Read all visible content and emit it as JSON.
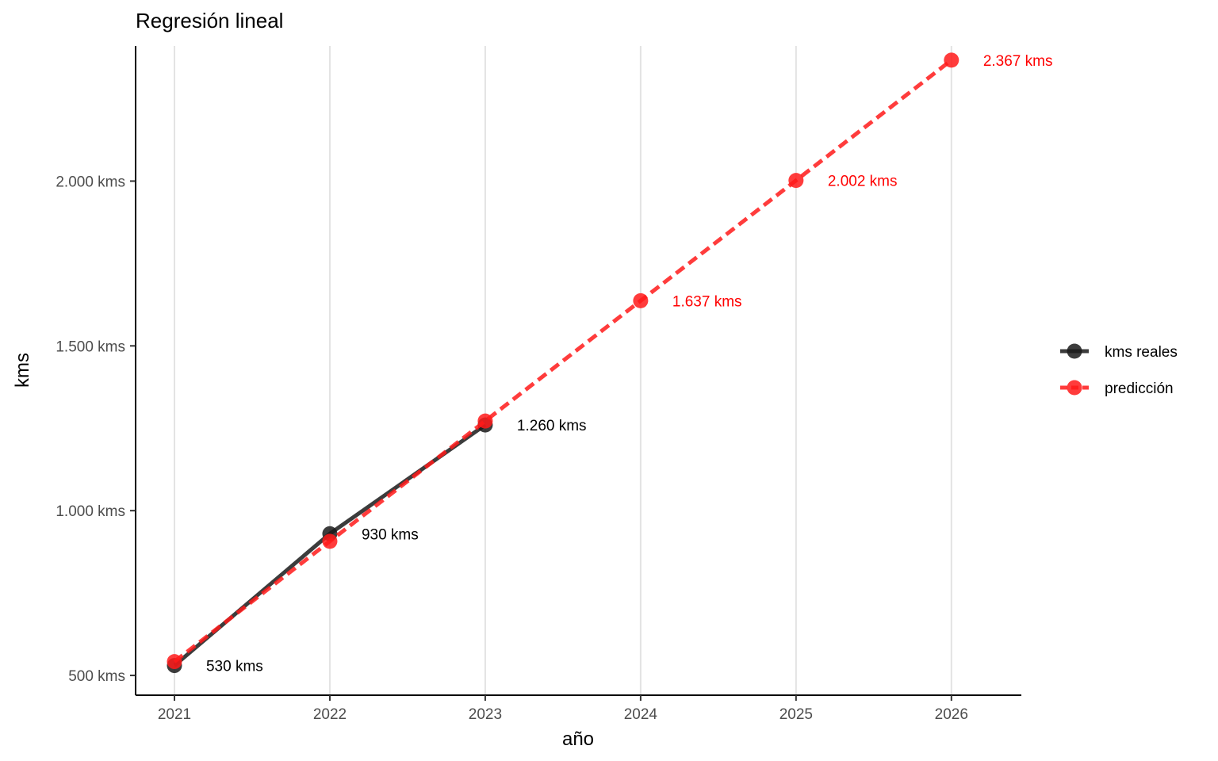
{
  "chart_data": {
    "type": "line",
    "title": "Regresión lineal",
    "xlabel": "año",
    "ylabel": "kms",
    "x": [
      2021,
      2022,
      2023,
      2024,
      2025,
      2026
    ],
    "x_tick_labels": [
      "2021",
      "2022",
      "2023",
      "2024",
      "2025",
      "2026"
    ],
    "y_ticks": [
      500,
      1000,
      1500,
      2000
    ],
    "y_tick_labels": [
      "500 kms",
      "1.000 kms",
      "1.500 kms",
      "2.000 kms"
    ],
    "xlim": [
      2020.75,
      2026.45
    ],
    "ylim": [
      440,
      2410
    ],
    "grid": "vertical major lines",
    "legend_position": "right",
    "series": [
      {
        "name": "kms reales",
        "color": "#1a1a1a",
        "line_style": "solid",
        "x": [
          2021,
          2022,
          2023
        ],
        "values": [
          530,
          930,
          1260
        ],
        "labels": [
          "530 kms",
          "930 kms",
          "1.260 kms"
        ],
        "label_color": "#000000"
      },
      {
        "name": "predicción",
        "color": "#ff1a1a",
        "line_style": "dashed",
        "x": [
          2021,
          2022,
          2023,
          2024,
          2025,
          2026
        ],
        "values": [
          542,
          907,
          1272,
          1637,
          2002,
          2367
        ],
        "labels": [
          "",
          "",
          "",
          "1.637 kms",
          "2.002 kms",
          "2.367 kms"
        ],
        "label_color": "#ff0000"
      }
    ]
  }
}
